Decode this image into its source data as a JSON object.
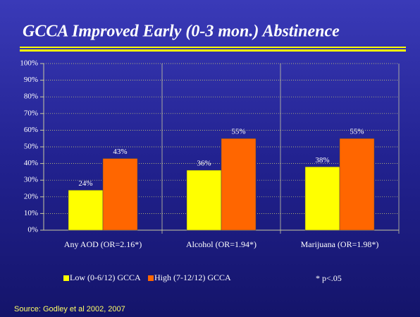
{
  "chart_data": {
    "type": "bar",
    "title": "GCCA Improved Early (0-3 mon.) Abstinence",
    "categories": [
      "Any AOD (OR=2.16*)",
      "Alcohol (OR=1.94*)",
      "Marijuana (OR=1.98*)"
    ],
    "series": [
      {
        "name": "Low (0-6/12) GCCA",
        "color": "#ffff00",
        "values": [
          24,
          36,
          38
        ],
        "value_labels": [
          "24%",
          "36%",
          "38%"
        ]
      },
      {
        "name": "High (7-12/12) GCCA",
        "color": "#ff6600",
        "values": [
          43,
          55,
          55
        ],
        "value_labels": [
          "43%",
          "55%",
          "55%"
        ]
      }
    ],
    "ylim": [
      0,
      100
    ],
    "yticks": [
      {
        "value": 0,
        "label": "0%"
      },
      {
        "value": 10,
        "label": "10%"
      },
      {
        "value": 20,
        "label": "20%"
      },
      {
        "value": 30,
        "label": "30%"
      },
      {
        "value": 40,
        "label": "40%"
      },
      {
        "value": 50,
        "label": "50%"
      },
      {
        "value": 60,
        "label": "60%"
      },
      {
        "value": 70,
        "label": "70%"
      },
      {
        "value": 80,
        "label": "80%"
      },
      {
        "value": 90,
        "label": "90%"
      },
      {
        "value": 100,
        "label": "100%"
      }
    ],
    "grid": true,
    "annotation": "* p<.05",
    "source": "Source: Godley et al 2002, 2007"
  }
}
